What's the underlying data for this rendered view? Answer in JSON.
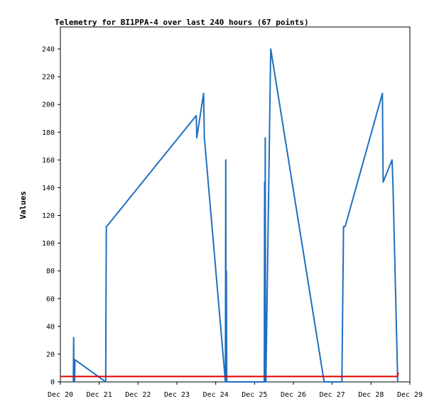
{
  "chart_data": {
    "type": "line",
    "title": "Telemetry for BI1PPA-4 over last 240 hours (67 points)",
    "ylabel": "Values",
    "xlabel": "",
    "ylim": [
      0,
      255
    ],
    "xlim": [
      "2023-12-20T00:00",
      "2023-12-29T00:00"
    ],
    "x_ticks": [
      "Dec 20",
      "Dec 21",
      "Dec 22",
      "Dec 23",
      "Dec 24",
      "Dec 25",
      "Dec 26",
      "Dec 27",
      "Dec 28",
      "Dec 29"
    ],
    "y_ticks": [
      0,
      20,
      40,
      60,
      80,
      100,
      120,
      140,
      160,
      180,
      200,
      220,
      240
    ],
    "grid": false,
    "series": [
      {
        "color": "#1f6fbf",
        "x": [
          "2023-12-20T08:00",
          "2023-12-20T08:12",
          "2023-12-20T08:24",
          "2023-12-20T08:36",
          "2023-12-20T08:48",
          "2023-12-20T09:00",
          "2023-12-21T04:00",
          "2023-12-21T04:12",
          "2023-12-21T04:24",
          "2023-12-21T04:36",
          "2023-12-23T12:00",
          "2023-12-23T12:18",
          "2023-12-23T16:30",
          "2023-12-23T17:00",
          "2023-12-24T06:00",
          "2023-12-24T06:12",
          "2023-12-24T06:24",
          "2023-12-24T06:36",
          "2023-12-24T06:48",
          "2023-12-24T07:00",
          "2023-12-25T06:00",
          "2023-12-25T06:12",
          "2023-12-25T06:24",
          "2023-12-25T06:36",
          "2023-12-25T06:48",
          "2023-12-25T07:00",
          "2023-12-25T10:00",
          "2023-12-26T19:00",
          "2023-12-27T06:00",
          "2023-12-27T07:00",
          "2023-12-27T08:00",
          "2023-12-28T07:00",
          "2023-12-28T07:30",
          "2023-12-28T13:00",
          "2023-12-28T13:30",
          "2023-12-28T16:30"
        ],
        "y": [
          0,
          32,
          0,
          16,
          0,
          16,
          0,
          56,
          112,
          112,
          192,
          176,
          208,
          176,
          0,
          160,
          0,
          80,
          0,
          0,
          0,
          144,
          0,
          176,
          0,
          0,
          240,
          0,
          0,
          112,
          112,
          208,
          144,
          160,
          144,
          0
        ]
      },
      {
        "color": "#e00000",
        "x": [
          "2023-12-20T00:00",
          "2023-12-28T16:00",
          "2023-12-28T17:00"
        ],
        "y": [
          3.9,
          3.9,
          6.6
        ]
      }
    ]
  }
}
